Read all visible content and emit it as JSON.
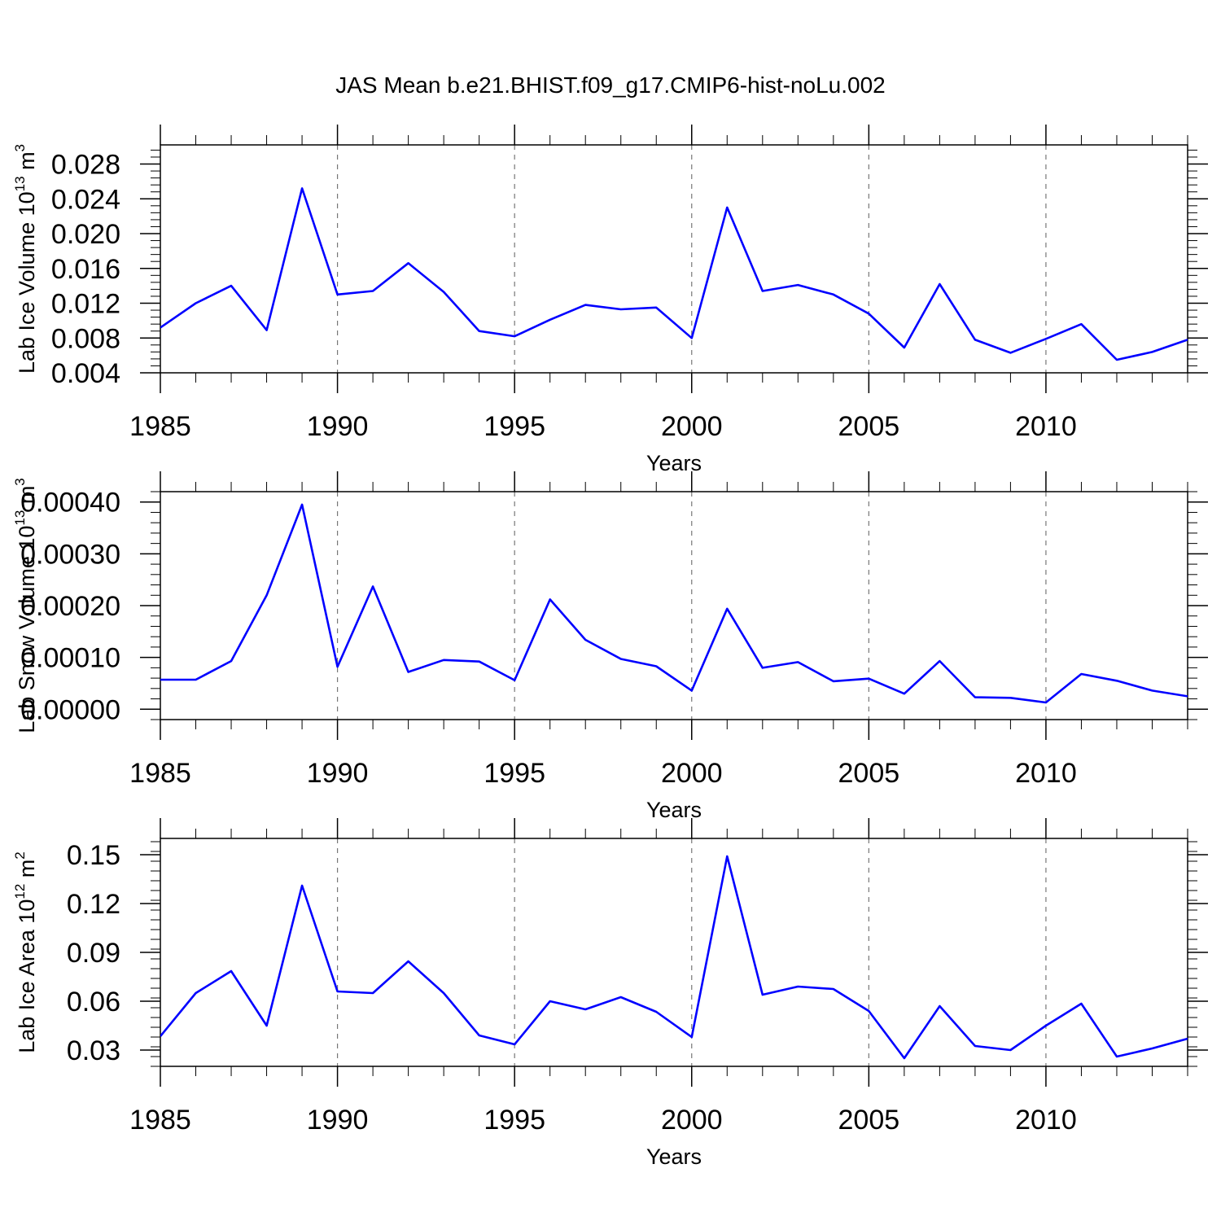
{
  "title": "JAS Mean b.e21.BHIST.f09_g17.CMIP6-hist-noLu.002",
  "line_color": "#0000ff",
  "chart_data": [
    {
      "type": "line",
      "title": "",
      "xlabel": "Years",
      "ylabel": "Lab Ice Volume 10",
      "ylabel_exponent": "13",
      "ylabel_unit": "m",
      "ylabel_unit_exponent": "3",
      "xlim": [
        1985,
        2014
      ],
      "ylim": [
        0.004,
        0.0302
      ],
      "xticks": [
        "1985",
        "1990",
        "1995",
        "2000",
        "2005",
        "2010"
      ],
      "yticks": [
        "0.004",
        "0.008",
        "0.012",
        "0.016",
        "0.020",
        "0.024",
        "0.028"
      ],
      "series": [
        {
          "name": "Lab Ice Volume",
          "x": [
            1985,
            1986,
            1987,
            1988,
            1989,
            1990,
            1991,
            1992,
            1993,
            1994,
            1995,
            1996,
            1997,
            1998,
            1999,
            2000,
            2001,
            2002,
            2003,
            2004,
            2005,
            2006,
            2007,
            2008,
            2009,
            2010,
            2011,
            2012,
            2013,
            2014
          ],
          "values": [
            0.0092,
            0.012,
            0.014,
            0.0089,
            0.0252,
            0.013,
            0.0134,
            0.0166,
            0.0133,
            0.0088,
            0.0082,
            0.0101,
            0.0118,
            0.0113,
            0.0115,
            0.008,
            0.023,
            0.0134,
            0.0141,
            0.013,
            0.0108,
            0.0069,
            0.0142,
            0.0078,
            0.0063,
            0.0079,
            0.0096,
            0.0055,
            0.0064,
            0.0078
          ]
        }
      ]
    },
    {
      "type": "line",
      "title": "",
      "xlabel": "Years",
      "ylabel": "Lab Snow Volume 10",
      "ylabel_exponent": "13",
      "ylabel_unit": "m",
      "ylabel_unit_exponent": "3",
      "xlim": [
        1985,
        2014
      ],
      "ylim": [
        -2e-05,
        0.00042
      ],
      "xticks": [
        "1985",
        "1990",
        "1995",
        "2000",
        "2005",
        "2010"
      ],
      "yticks": [
        "0.00000",
        "0.00010",
        "0.00020",
        "0.00030",
        "0.00040"
      ],
      "series": [
        {
          "name": "Lab Snow Volume",
          "x": [
            1985,
            1986,
            1987,
            1988,
            1989,
            1990,
            1991,
            1992,
            1993,
            1994,
            1995,
            1996,
            1997,
            1998,
            1999,
            2000,
            2001,
            2002,
            2003,
            2004,
            2005,
            2006,
            2007,
            2008,
            2009,
            2010,
            2011,
            2012,
            2013,
            2014
          ],
          "values": [
            5.7e-05,
            5.7e-05,
            9.3e-05,
            0.00022,
            0.000395,
            8.2e-05,
            0.000237,
            7.2e-05,
            9.5e-05,
            9.2e-05,
            5.6e-05,
            0.000212,
            0.000134,
            9.7e-05,
            8.3e-05,
            3.6e-05,
            0.000194,
            8e-05,
            9.1e-05,
            5.4e-05,
            5.9e-05,
            3e-05,
            9.3e-05,
            2.3e-05,
            2.2e-05,
            1.3e-05,
            6.8e-05,
            5.5e-05,
            3.6e-05,
            2.5e-05
          ]
        }
      ]
    },
    {
      "type": "line",
      "title": "",
      "xlabel": "Years",
      "ylabel": "Lab Ice Area 10",
      "ylabel_exponent": "12",
      "ylabel_unit": "m",
      "ylabel_unit_exponent": "2",
      "xlim": [
        1985,
        2014
      ],
      "ylim": [
        0.02,
        0.16
      ],
      "xticks": [
        "1985",
        "1990",
        "1995",
        "2000",
        "2005",
        "2010"
      ],
      "yticks": [
        "0.03",
        "0.06",
        "0.09",
        "0.12",
        "0.15"
      ],
      "series": [
        {
          "name": "Lab Ice Area",
          "x": [
            1985,
            1986,
            1987,
            1988,
            1989,
            1990,
            1991,
            1992,
            1993,
            1994,
            1995,
            1996,
            1997,
            1998,
            1999,
            2000,
            2001,
            2002,
            2003,
            2004,
            2005,
            2006,
            2007,
            2008,
            2009,
            2010,
            2011,
            2012,
            2013,
            2014
          ],
          "values": [
            0.0385,
            0.065,
            0.0785,
            0.045,
            0.131,
            0.066,
            0.065,
            0.0845,
            0.065,
            0.039,
            0.0335,
            0.06,
            0.055,
            0.0625,
            0.0535,
            0.038,
            0.149,
            0.064,
            0.069,
            0.0675,
            0.054,
            0.025,
            0.057,
            0.0325,
            0.03,
            0.045,
            0.0585,
            0.026,
            0.031,
            0.037
          ]
        }
      ]
    }
  ]
}
